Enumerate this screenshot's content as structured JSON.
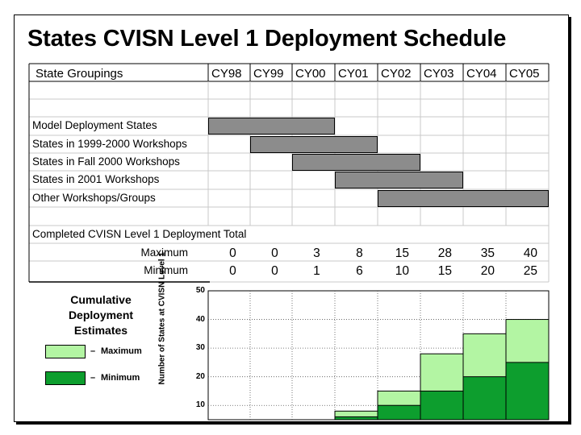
{
  "title": "States CVISN Level 1 Deployment Schedule",
  "table": {
    "groupings_header": "State Groupings",
    "years": [
      "CY98",
      "CY99",
      "CY00",
      "CY01",
      "CY02",
      "CY03",
      "CY04",
      "CY05"
    ],
    "groups": [
      {
        "label": "Model Deployment States",
        "start_year": "CY98",
        "end_year": "CY00"
      },
      {
        "label": "States in 1999-2000 Workshops",
        "start_year": "CY99",
        "end_year": "CY01"
      },
      {
        "label": "States in Fall 2000 Workshops",
        "start_year": "CY00",
        "end_year": "CY02"
      },
      {
        "label": "States in 2001 Workshops",
        "start_year": "CY01",
        "end_year": "CY03"
      },
      {
        "label": "Other Workshops/Groups",
        "start_year": "CY02",
        "end_year": "CY05"
      }
    ],
    "completed_label": "Completed CVISN Level 1 Deployment Total",
    "maximum_label": "Maximum",
    "minimum_label": "Minimum",
    "maximum": [
      0,
      0,
      3,
      8,
      15,
      28,
      35,
      40
    ],
    "minimum": [
      0,
      0,
      1,
      6,
      10,
      15,
      20,
      25
    ]
  },
  "legend": {
    "title": "Cumulative Deployment Estimates",
    "maximum": "Maximum",
    "minimum": "Minimum",
    "max_color": "#b3f5a3",
    "min_color": "#0d9e2e"
  },
  "chart_data": {
    "type": "bar",
    "categories": [
      "CY98",
      "CY99",
      "CY00",
      "CY01",
      "CY02",
      "CY03",
      "CY04",
      "CY05"
    ],
    "series": [
      {
        "name": "Maximum",
        "values": [
          0,
          0,
          3,
          8,
          15,
          28,
          35,
          40
        ]
      },
      {
        "name": "Minimum",
        "values": [
          0,
          0,
          1,
          6,
          10,
          15,
          20,
          25
        ]
      }
    ],
    "ylabel": "Number of States at CVISN Level 1",
    "ylim": [
      5,
      50
    ],
    "yticks": [
      10,
      20,
      30,
      40,
      50
    ],
    "grid": true,
    "legend_position": "left"
  }
}
